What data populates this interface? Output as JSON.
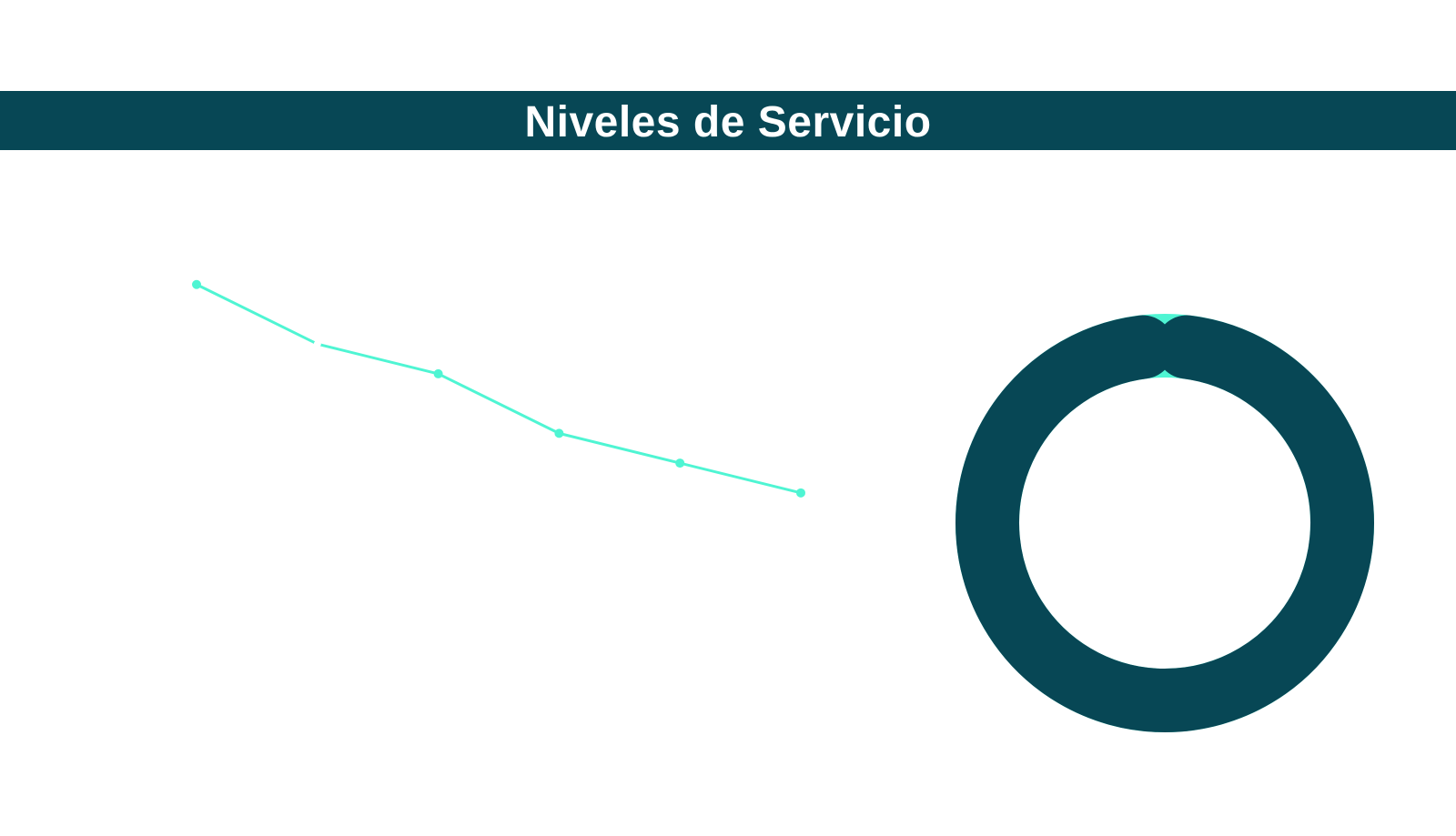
{
  "header": {
    "title": "Niveles de Servicio",
    "background_color": "#074755",
    "text_color": "#ffffff"
  },
  "colors": {
    "accent": "#4ff5d3",
    "primary_dark": "#074755",
    "background": "#ffffff"
  },
  "chart_data": [
    {
      "type": "line",
      "title": "",
      "xlabel": "",
      "ylabel": "",
      "x": [
        1,
        2,
        3,
        4,
        5,
        6
      ],
      "series": [
        {
          "values": [
            100,
            80,
            70,
            50,
            40,
            30
          ],
          "color": "#4ff5d3"
        }
      ],
      "ylim": [
        0,
        110
      ],
      "grid": false
    },
    {
      "type": "pie",
      "title": "",
      "slices": [
        {
          "value": 96,
          "color": "#074755"
        },
        {
          "value": 4,
          "color": "#4ff5d3"
        }
      ],
      "style": "donut"
    }
  ]
}
